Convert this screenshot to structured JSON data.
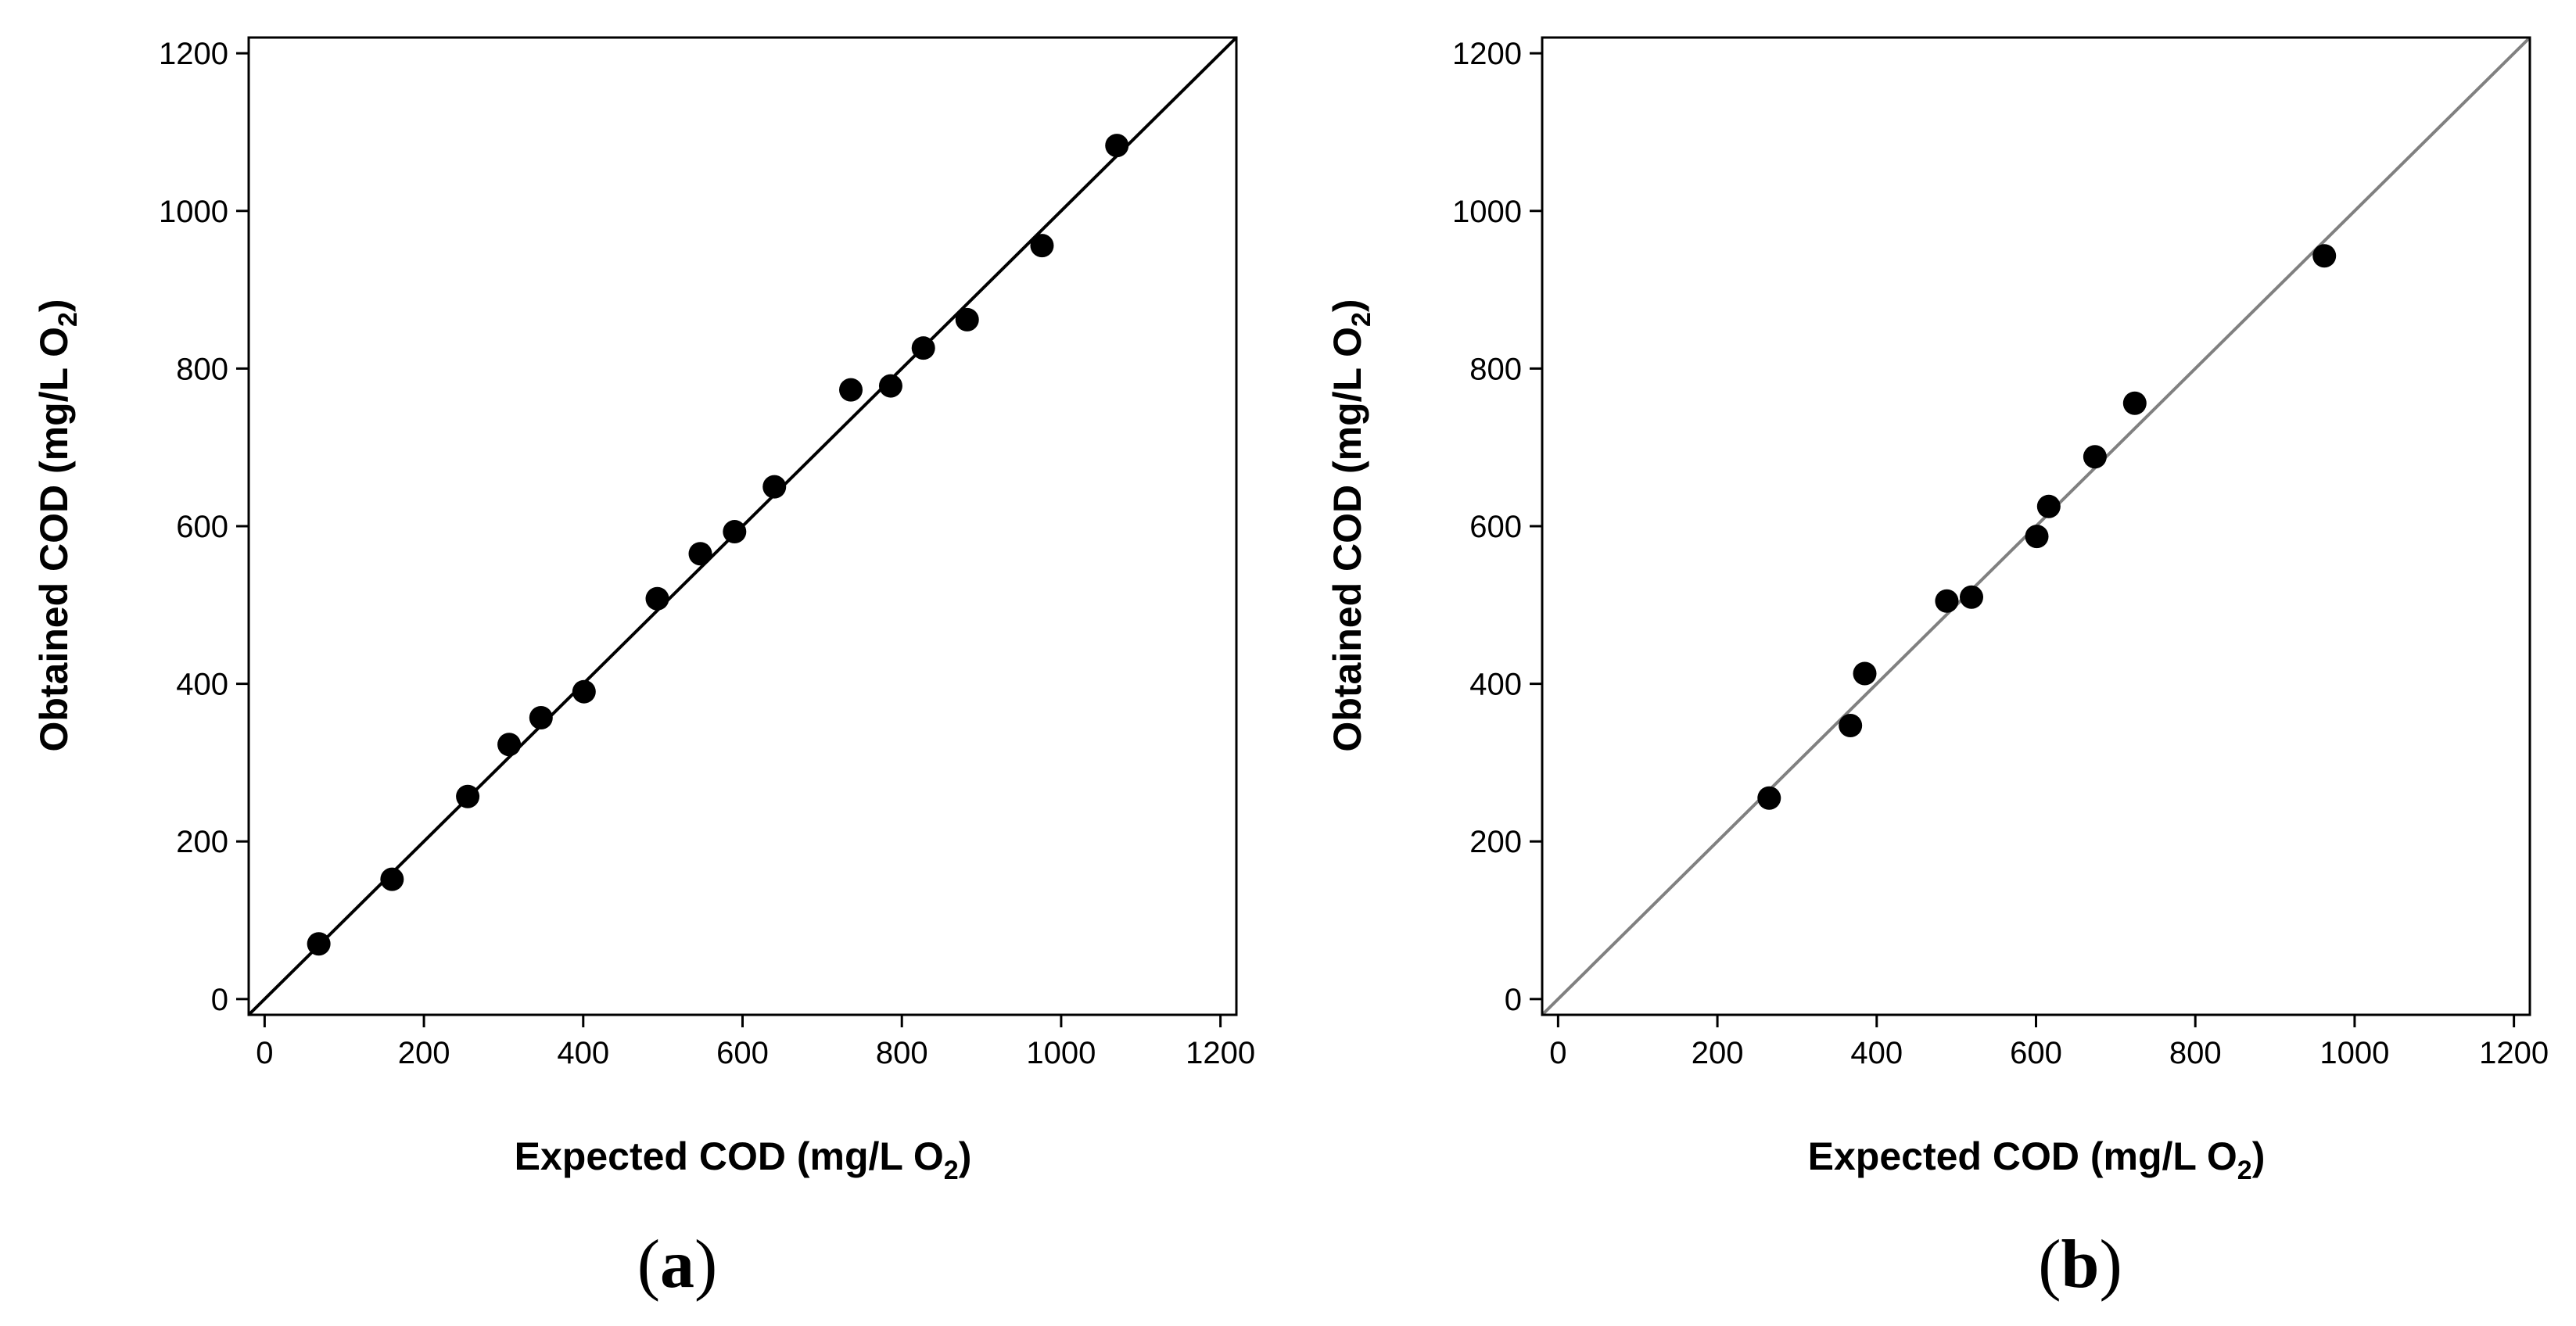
{
  "chart_data": [
    {
      "type": "scatter",
      "panel_label": "a",
      "xlabel": "Expected COD (mg/L O2)",
      "xlabel_main": "Expected COD (mg/L O",
      "xlabel_sub": "2",
      "xlabel_end": ")",
      "ylabel": "Obtained COD (mg/L O2)",
      "ylabel_main": "Obtained COD (mg/L O",
      "ylabel_sub": "2",
      "ylabel_end": ")",
      "xlim": [
        -20,
        1220
      ],
      "ylim": [
        -20,
        1220
      ],
      "xticks": [
        0,
        200,
        400,
        600,
        800,
        1000,
        1200
      ],
      "yticks": [
        0,
        200,
        400,
        600,
        800,
        1000,
        1200
      ],
      "grid": false,
      "reference_line": "y = x",
      "points": [
        {
          "x": 68,
          "y": 70
        },
        {
          "x": 160,
          "y": 152
        },
        {
          "x": 255,
          "y": 257
        },
        {
          "x": 307,
          "y": 323
        },
        {
          "x": 347,
          "y": 357
        },
        {
          "x": 401,
          "y": 390
        },
        {
          "x": 493,
          "y": 508
        },
        {
          "x": 547,
          "y": 565
        },
        {
          "x": 590,
          "y": 593
        },
        {
          "x": 640,
          "y": 650
        },
        {
          "x": 736,
          "y": 773
        },
        {
          "x": 786,
          "y": 778
        },
        {
          "x": 827,
          "y": 826
        },
        {
          "x": 882,
          "y": 862
        },
        {
          "x": 976,
          "y": 956
        },
        {
          "x": 1070,
          "y": 1083
        }
      ]
    },
    {
      "type": "scatter",
      "panel_label": "b",
      "xlabel": "Expected COD (mg/L O2)",
      "xlabel_main": "Expected COD (mg/L O",
      "xlabel_sub": "2",
      "xlabel_end": ")",
      "ylabel": "Obtained COD (mg/L O2)",
      "ylabel_main": "Obtained COD (mg/L O",
      "ylabel_sub": "2",
      "ylabel_end": ")",
      "xlim": [
        -20,
        1220
      ],
      "ylim": [
        -20,
        1220
      ],
      "xticks": [
        0,
        200,
        400,
        600,
        800,
        1000,
        1200
      ],
      "yticks": [
        0,
        200,
        400,
        600,
        800,
        1000,
        1200
      ],
      "grid": false,
      "reference_line": "y = x",
      "points": [
        {
          "x": 265,
          "y": 255
        },
        {
          "x": 367,
          "y": 347
        },
        {
          "x": 385,
          "y": 413
        },
        {
          "x": 488,
          "y": 505
        },
        {
          "x": 519,
          "y": 510
        },
        {
          "x": 601,
          "y": 587
        },
        {
          "x": 616,
          "y": 625
        },
        {
          "x": 674,
          "y": 688
        },
        {
          "x": 724,
          "y": 756
        },
        {
          "x": 962,
          "y": 943
        }
      ]
    }
  ],
  "colors": {
    "marker": "#000000",
    "fit_line_a": "#000000",
    "fit_line_b": "#808080",
    "axis": "#000000"
  }
}
